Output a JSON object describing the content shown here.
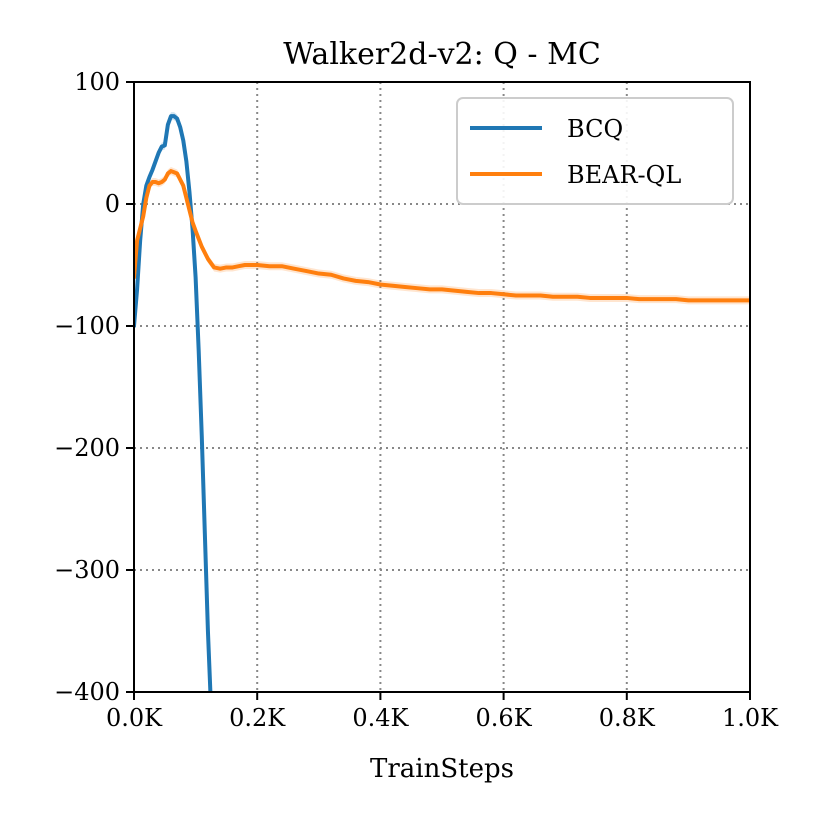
{
  "chart_data": {
    "type": "line",
    "title": "Walker2d-v2: Q - MC",
    "xlabel": "TrainSteps",
    "ylabel": "",
    "xlim": [
      0,
      1000
    ],
    "ylim": [
      -400,
      100
    ],
    "xticks": [
      0,
      200,
      400,
      600,
      800,
      1000
    ],
    "xtick_labels": [
      "0.0K",
      "0.2K",
      "0.4K",
      "0.6K",
      "0.8K",
      "1.0K"
    ],
    "yticks": [
      100,
      0,
      -100,
      -200,
      -300,
      -400
    ],
    "ytick_labels": [
      "100",
      "0",
      "−100",
      "−200",
      "−300",
      "−400"
    ],
    "grid": true,
    "legend_position": "top-right",
    "series": [
      {
        "name": "BCQ",
        "color": "#1f77b4",
        "x": [
          0,
          5,
          10,
          15,
          20,
          25,
          30,
          35,
          40,
          45,
          50,
          55,
          60,
          65,
          70,
          75,
          80,
          85,
          90,
          95,
          100,
          105,
          110,
          115,
          120,
          124
        ],
        "y": [
          -100,
          -70,
          -30,
          0,
          15,
          22,
          28,
          35,
          42,
          47,
          48,
          65,
          72,
          72,
          70,
          63,
          52,
          35,
          10,
          -20,
          -60,
          -120,
          -190,
          -270,
          -350,
          -400
        ]
      },
      {
        "name": "BEAR-QL",
        "color": "#ff7f0e",
        "x": [
          0,
          5,
          10,
          15,
          20,
          25,
          30,
          35,
          40,
          45,
          50,
          55,
          60,
          65,
          70,
          75,
          80,
          85,
          90,
          95,
          100,
          110,
          120,
          130,
          140,
          150,
          160,
          170,
          180,
          190,
          200,
          220,
          240,
          260,
          280,
          300,
          320,
          340,
          360,
          380,
          400,
          420,
          440,
          460,
          480,
          500,
          520,
          540,
          560,
          580,
          600,
          620,
          640,
          660,
          680,
          700,
          720,
          740,
          760,
          780,
          800,
          820,
          840,
          860,
          880,
          900,
          920,
          940,
          960,
          980,
          1000
        ],
        "y": [
          -60,
          -30,
          -20,
          -10,
          5,
          15,
          18,
          18,
          17,
          18,
          20,
          25,
          27,
          26,
          25,
          20,
          15,
          5,
          -5,
          -15,
          -22,
          -35,
          -45,
          -52,
          -53,
          -52,
          -52,
          -51,
          -50,
          -50,
          -50,
          -51,
          -51,
          -53,
          -55,
          -57,
          -58,
          -61,
          -63,
          -64,
          -66,
          -67,
          -68,
          -69,
          -70,
          -70,
          -71,
          -72,
          -73,
          -73,
          -74,
          -75,
          -75,
          -75,
          -76,
          -76,
          -76,
          -77,
          -77,
          -77,
          -77,
          -78,
          -78,
          -78,
          -78,
          -79,
          -79,
          -79,
          -79,
          -79,
          -79
        ]
      }
    ]
  }
}
